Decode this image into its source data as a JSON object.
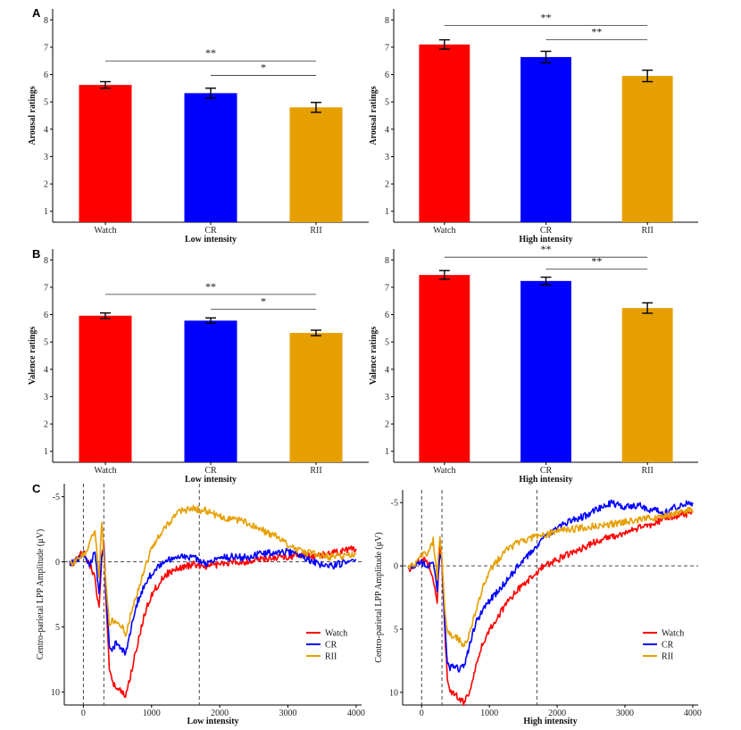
{
  "colors": {
    "watch": "#ff0000",
    "cr": "#0000ff",
    "rii": "#e69f00"
  },
  "panel_labels": [
    "A",
    "B",
    "C"
  ],
  "chart_data": [
    {
      "type": "bar",
      "panel": "A",
      "categories": [
        "Watch",
        "CR",
        "RII"
      ],
      "values": [
        5.62,
        5.32,
        4.8
      ],
      "errors": [
        0.12,
        0.18,
        0.18
      ],
      "xlabel": "Low intensity",
      "ylabel": "Arousal ratings",
      "ylim": [
        0.6,
        8.4
      ],
      "yticks": [
        "1",
        "2",
        "3",
        "4",
        "5",
        "6",
        "7",
        "8"
      ],
      "significance": [
        {
          "from": 0,
          "to": 2,
          "label": "**",
          "y": 6.5
        },
        {
          "from": 1,
          "to": 2,
          "label": "*",
          "y": 5.97
        }
      ]
    },
    {
      "type": "bar",
      "panel": "A",
      "categories": [
        "Watch",
        "CR",
        "RII"
      ],
      "values": [
        7.1,
        6.64,
        5.95
      ],
      "errors": [
        0.17,
        0.21,
        0.21
      ],
      "xlabel": "High intensity",
      "ylabel": "Arousal ratings",
      "ylim": [
        0.6,
        8.4
      ],
      "yticks": [
        "1",
        "2",
        "3",
        "4",
        "5",
        "6",
        "7",
        "8"
      ],
      "significance": [
        {
          "from": 0,
          "to": 2,
          "label": "**",
          "y": 7.8
        },
        {
          "from": 1,
          "to": 2,
          "label": "**",
          "y": 7.27
        }
      ]
    },
    {
      "type": "bar",
      "panel": "B",
      "categories": [
        "Watch",
        "CR",
        "RII"
      ],
      "values": [
        5.96,
        5.78,
        5.33
      ],
      "errors": [
        0.1,
        0.1,
        0.1
      ],
      "xlabel": "Low intensity",
      "ylabel": "Valence ratings",
      "ylim": [
        0.6,
        8.4
      ],
      "yticks": [
        "1",
        "2",
        "3",
        "4",
        "5",
        "6",
        "7",
        "8"
      ],
      "significance": [
        {
          "from": 0,
          "to": 2,
          "label": "**",
          "y": 6.74
        },
        {
          "from": 1,
          "to": 2,
          "label": "*",
          "y": 6.2
        }
      ]
    },
    {
      "type": "bar",
      "panel": "B",
      "categories": [
        "Watch",
        "CR",
        "RII"
      ],
      "values": [
        7.45,
        7.23,
        6.24
      ],
      "errors": [
        0.16,
        0.14,
        0.19
      ],
      "xlabel": "High intensity",
      "ylabel": "Valence ratings",
      "ylim": [
        0.6,
        8.4
      ],
      "yticks": [
        "1",
        "2",
        "3",
        "4",
        "5",
        "6",
        "7",
        "8"
      ],
      "significance": [
        {
          "from": 0,
          "to": 2,
          "label": "**",
          "y": 8.1
        },
        {
          "from": 1,
          "to": 2,
          "label": "**",
          "y": 7.67
        }
      ]
    },
    {
      "type": "line",
      "panel": "C",
      "xlabel": "Low intensity",
      "ylabel": "Centro-parietal LPP Amplitude (μV)",
      "xlim": [
        -280,
        4080
      ],
      "ylim": [
        -6,
        11
      ],
      "y_inverted": true,
      "xticks": [
        "0",
        "1000",
        "2000",
        "3000",
        "4000"
      ],
      "yticks": [
        "-5",
        "0",
        "5",
        "10"
      ],
      "vlines": [
        0,
        300,
        1700
      ],
      "hline": 0,
      "legend": [
        "Watch",
        "CR",
        "RII"
      ],
      "legend_position": "bottom-right",
      "series": [
        {
          "name": "Watch",
          "x": [
            -200,
            0,
            100,
            170,
            230,
            270,
            300,
            340,
            380,
            420,
            480,
            550,
            620,
            700,
            800,
            900,
            1000,
            1200,
            1400,
            1600,
            1800,
            2000,
            2200,
            2400,
            2600,
            2800,
            3000,
            3200,
            3400,
            3600,
            3800,
            4000
          ],
          "y": [
            0.4,
            -0.8,
            0.3,
            1.2,
            3.6,
            -0.5,
            -1.2,
            4.0,
            8.0,
            9.3,
            9.5,
            10.0,
            10.4,
            8.5,
            6.2,
            4.0,
            2.5,
            1.0,
            0.5,
            0.2,
            0.3,
            0.2,
            0.0,
            0.0,
            -0.2,
            -0.3,
            -0.4,
            -0.5,
            -0.5,
            -0.6,
            -0.8,
            -1.0
          ]
        },
        {
          "name": "CR",
          "x": [
            -200,
            0,
            100,
            170,
            230,
            270,
            300,
            340,
            380,
            420,
            480,
            550,
            620,
            700,
            800,
            900,
            1000,
            1200,
            1400,
            1600,
            1800,
            2000,
            2200,
            2400,
            2600,
            2800,
            3000,
            3200,
            3400,
            3600,
            3800,
            4000
          ],
          "y": [
            0.2,
            -0.6,
            0.2,
            -0.8,
            2.5,
            -0.5,
            -1.0,
            3.0,
            6.5,
            6.8,
            6.2,
            6.5,
            7.2,
            5.0,
            3.0,
            1.7,
            0.9,
            0.0,
            -0.5,
            -0.3,
            0.1,
            -0.3,
            -0.4,
            -0.3,
            -0.6,
            -0.7,
            -0.8,
            -0.5,
            0.1,
            0.4,
            0.1,
            -0.2
          ]
        },
        {
          "name": "RII",
          "x": [
            -200,
            0,
            100,
            170,
            230,
            270,
            300,
            340,
            380,
            420,
            480,
            550,
            620,
            700,
            800,
            900,
            1000,
            1200,
            1400,
            1600,
            1800,
            2000,
            2200,
            2400,
            2600,
            2800,
            3000,
            3200,
            3400,
            3600,
            3800,
            4000
          ],
          "y": [
            0.3,
            -0.5,
            -1.5,
            -2.5,
            1.2,
            -3.2,
            -0.5,
            2.5,
            4.8,
            4.5,
            4.6,
            4.8,
            5.5,
            4.0,
            2.2,
            0.5,
            -1.0,
            -2.7,
            -3.8,
            -4.1,
            -3.9,
            -3.5,
            -3.3,
            -3.0,
            -2.5,
            -2.0,
            -1.3,
            -0.8,
            -0.6,
            -0.4,
            -0.4,
            -0.6
          ]
        }
      ]
    },
    {
      "type": "line",
      "panel": "C",
      "xlabel": "High intensity",
      "ylabel": "Centro-parietal LPP Amplitude (μV)",
      "xlim": [
        -280,
        4080
      ],
      "ylim": [
        -6,
        11
      ],
      "y_inverted": true,
      "xticks": [
        "0",
        "1000",
        "2000",
        "3000",
        "4000"
      ],
      "yticks": [
        "-5",
        "0",
        "5",
        "10"
      ],
      "vlines": [
        0,
        300,
        1700
      ],
      "hline": 0,
      "legend": [
        "Watch",
        "CR",
        "RII"
      ],
      "legend_position": "bottom-right",
      "series": [
        {
          "name": "Watch",
          "x": [
            -200,
            0,
            100,
            170,
            230,
            270,
            300,
            340,
            380,
            420,
            480,
            550,
            620,
            700,
            800,
            900,
            1000,
            1200,
            1400,
            1600,
            1800,
            2000,
            2200,
            2400,
            2600,
            2800,
            3000,
            3200,
            3400,
            3600,
            3800,
            4000
          ],
          "y": [
            0.3,
            -0.5,
            -0.3,
            1.0,
            3.0,
            -1.5,
            -0.5,
            5.0,
            9.0,
            10.0,
            10.0,
            10.5,
            10.8,
            10.0,
            8.0,
            6.2,
            5.0,
            3.4,
            2.0,
            1.0,
            0.0,
            -0.5,
            -1.0,
            -1.5,
            -2.0,
            -2.3,
            -2.6,
            -3.0,
            -3.3,
            -3.8,
            -4.0,
            -4.2
          ]
        },
        {
          "name": "CR",
          "x": [
            -200,
            0,
            100,
            170,
            230,
            270,
            300,
            340,
            380,
            420,
            480,
            550,
            620,
            700,
            800,
            900,
            1000,
            1200,
            1400,
            1600,
            1800,
            2000,
            2200,
            2400,
            2600,
            2800,
            3000,
            3200,
            3400,
            3600,
            3800,
            4000
          ],
          "y": [
            0.2,
            -0.3,
            0.2,
            -0.5,
            2.0,
            -1.0,
            -0.3,
            4.5,
            7.5,
            8.0,
            8.0,
            8.2,
            8.0,
            6.5,
            4.5,
            3.5,
            2.8,
            1.5,
            0.2,
            -1.0,
            -2.2,
            -3.0,
            -3.6,
            -3.9,
            -4.5,
            -5.0,
            -4.6,
            -4.8,
            -4.4,
            -4.2,
            -4.8,
            -5.0
          ]
        },
        {
          "name": "RII",
          "x": [
            -200,
            0,
            100,
            170,
            230,
            270,
            300,
            340,
            380,
            420,
            480,
            550,
            620,
            700,
            800,
            900,
            1000,
            1200,
            1400,
            1600,
            1800,
            2000,
            2200,
            2400,
            2600,
            2800,
            3000,
            3200,
            3400,
            3600,
            3800,
            4000
          ],
          "y": [
            0.3,
            -0.8,
            -1.0,
            -2.0,
            1.0,
            -2.5,
            -0.5,
            3.2,
            5.2,
            5.5,
            5.5,
            5.8,
            6.5,
            5.5,
            3.5,
            1.8,
            0.5,
            -1.0,
            -1.8,
            -2.2,
            -2.4,
            -2.8,
            -2.9,
            -3.0,
            -3.2,
            -3.3,
            -3.5,
            -3.6,
            -3.8,
            -3.9,
            -4.2,
            -4.4
          ]
        }
      ]
    }
  ]
}
